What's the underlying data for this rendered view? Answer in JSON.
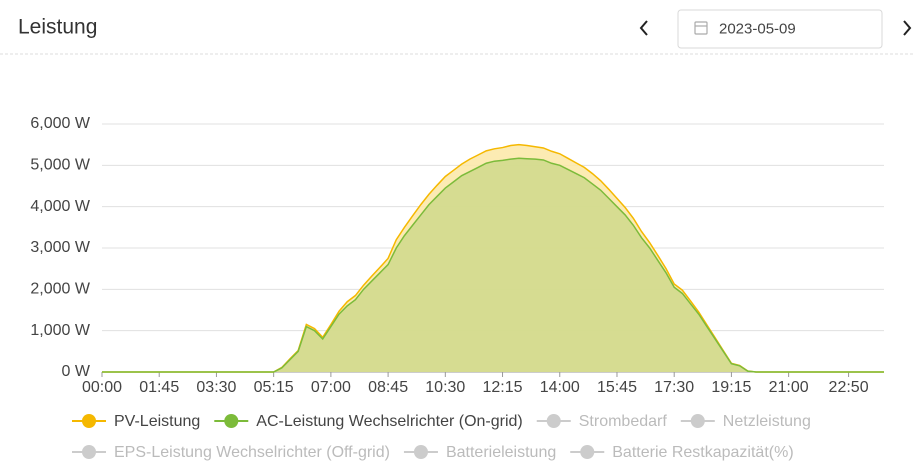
{
  "header": {
    "title": "Leistung",
    "date": "2023-05-09"
  },
  "chart_data": {
    "type": "area",
    "x": [
      "00:00",
      "05:00",
      "05:15",
      "05:30",
      "05:45",
      "06:00",
      "06:15",
      "06:30",
      "06:45",
      "07:00",
      "07:15",
      "07:30",
      "07:45",
      "08:00",
      "08:15",
      "08:30",
      "08:45",
      "09:00",
      "09:15",
      "09:30",
      "09:45",
      "10:00",
      "10:15",
      "10:30",
      "10:45",
      "11:00",
      "11:15",
      "11:30",
      "11:45",
      "12:00",
      "12:15",
      "12:30",
      "12:45",
      "13:00",
      "13:15",
      "13:30",
      "13:45",
      "14:00",
      "14:15",
      "14:30",
      "14:45",
      "15:00",
      "15:15",
      "15:30",
      "15:45",
      "16:00",
      "16:15",
      "16:30",
      "16:45",
      "17:00",
      "17:15",
      "17:30",
      "17:45",
      "18:00",
      "18:15",
      "18:30",
      "18:45",
      "19:00",
      "19:15",
      "19:30",
      "19:45",
      "20:00",
      "23:55"
    ],
    "series": [
      {
        "name": "PV-Leistung",
        "color": "#f5b800",
        "fill": "#fbe7a6",
        "values": [
          0,
          0,
          0,
          110,
          320,
          520,
          1150,
          1050,
          840,
          1150,
          1470,
          1700,
          1850,
          2100,
          2320,
          2530,
          2750,
          3200,
          3500,
          3780,
          4050,
          4300,
          4520,
          4730,
          4880,
          5030,
          5150,
          5250,
          5350,
          5400,
          5430,
          5480,
          5500,
          5480,
          5450,
          5420,
          5340,
          5280,
          5170,
          5060,
          4950,
          4800,
          4630,
          4420,
          4200,
          3980,
          3720,
          3400,
          3130,
          2820,
          2500,
          2130,
          1980,
          1720,
          1450,
          1140,
          830,
          520,
          210,
          160,
          25,
          0,
          0
        ]
      },
      {
        "name": "AC-Leistung Wechselrichter (On-grid)",
        "color": "#7cbb3a",
        "fill": "#cfd98b",
        "values": [
          0,
          0,
          0,
          100,
          300,
          500,
          1100,
          1000,
          800,
          1100,
          1400,
          1600,
          1750,
          2000,
          2200,
          2400,
          2600,
          3000,
          3300,
          3550,
          3800,
          4050,
          4250,
          4450,
          4600,
          4750,
          4850,
          4950,
          5050,
          5100,
          5120,
          5150,
          5170,
          5160,
          5150,
          5130,
          5050,
          5000,
          4900,
          4800,
          4700,
          4550,
          4400,
          4200,
          4000,
          3800,
          3550,
          3250,
          3000,
          2700,
          2400,
          2050,
          1900,
          1650,
          1400,
          1100,
          800,
          500,
          200,
          150,
          20,
          0,
          0
        ]
      }
    ],
    "hidden_series": [
      {
        "name": "Strombedarf",
        "color": "#cccccc"
      },
      {
        "name": "Netzleistung",
        "color": "#cccccc"
      },
      {
        "name": "EPS-Leistung Wechselrichter (Off-grid)",
        "color": "#cccccc"
      },
      {
        "name": "Batterieleistung",
        "color": "#cccccc"
      },
      {
        "name": "Batterie Restkapazität(%)",
        "color": "#cccccc"
      }
    ],
    "xlim": [
      "00:00",
      "23:55"
    ],
    "xticks": [
      "00:00",
      "01:45",
      "03:30",
      "05:15",
      "07:00",
      "08:45",
      "10:30",
      "12:15",
      "14:00",
      "15:45",
      "17:30",
      "19:15",
      "21:00",
      "22:50"
    ],
    "ylim": [
      0,
      6000
    ],
    "yticks": [
      {
        "value": 0,
        "label": "0 W"
      },
      {
        "value": 1000,
        "label": "1,000 W"
      },
      {
        "value": 2000,
        "label": "2,000 W"
      },
      {
        "value": 3000,
        "label": "3,000 W"
      },
      {
        "value": 4000,
        "label": "4,000 W"
      },
      {
        "value": 5000,
        "label": "5,000 W"
      },
      {
        "value": 6000,
        "label": "6,000 W"
      }
    ],
    "grid": true
  }
}
